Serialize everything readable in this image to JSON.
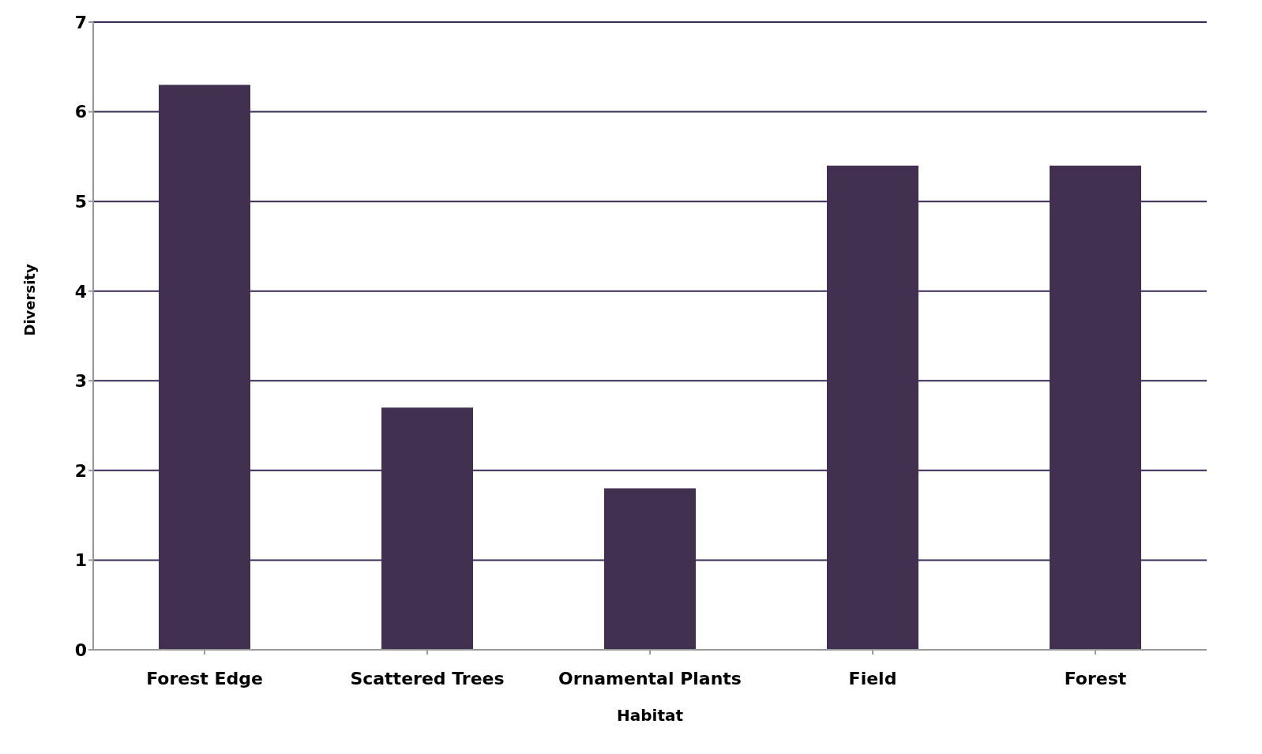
{
  "chart_data": {
    "type": "bar",
    "xlabel": "Habitat",
    "ylabel": "Diversity",
    "categories": [
      "Forest Edge",
      "Scattered Trees",
      "Ornamental Plants",
      "Field",
      "Forest"
    ],
    "values": [
      6.3,
      2.7,
      1.8,
      5.4,
      5.4
    ],
    "color": "#41304f",
    "ylim": [
      0,
      7
    ],
    "yticks": [
      0,
      1,
      2,
      3,
      4,
      5,
      6,
      7
    ],
    "grid": "y"
  }
}
